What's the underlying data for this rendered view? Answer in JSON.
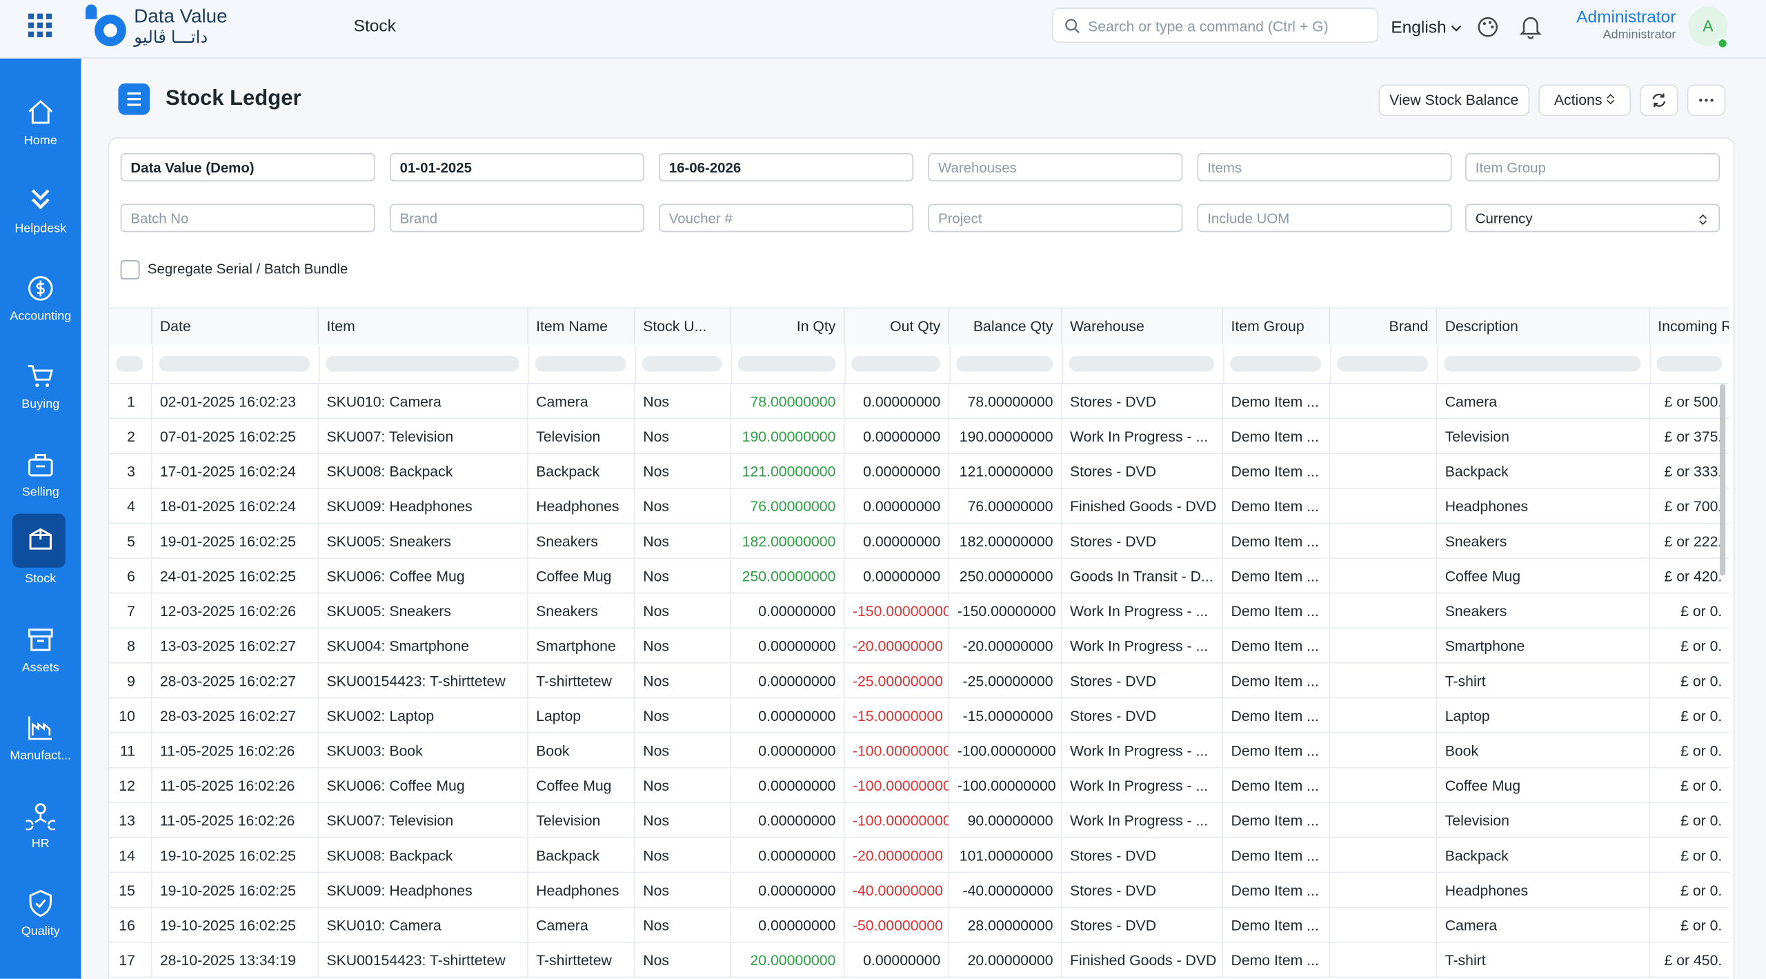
{
  "header": {
    "app_name": "Data Value",
    "app_name_ar": "داتـــا ڤاليو",
    "module": "Stock",
    "search_placeholder": "Search or type a command (Ctrl + G)",
    "language": "English",
    "user_name": "Administrator",
    "user_role": "Administrator",
    "avatar": "A"
  },
  "sidebar": [
    "Home",
    "Helpdesk",
    "Accounting",
    "Buying",
    "Selling",
    "Stock",
    "Assets",
    "Manufact...",
    "HR",
    "Quality"
  ],
  "sidebar_active": 5,
  "page": {
    "title": "Stock Ledger",
    "buttons": [
      "View Stock Balance",
      "Actions"
    ]
  },
  "filters": [
    {
      "value": "Data Value (Demo)"
    },
    {
      "value": "01-01-2025"
    },
    {
      "value": "16-06-2026"
    },
    {
      "placeholder": "Warehouses"
    },
    {
      "placeholder": "Items"
    },
    {
      "placeholder": "Item Group"
    },
    {
      "placeholder": "Batch No"
    },
    {
      "placeholder": "Brand"
    },
    {
      "placeholder": "Voucher #"
    },
    {
      "placeholder": "Project"
    },
    {
      "placeholder": "Include UOM"
    },
    {
      "value": "Currency",
      "select": true
    }
  ],
  "checkbox_label": "Segregate Serial / Batch Bundle",
  "table": {
    "columns": [
      "Date",
      "Item",
      "Item Name",
      "Stock U...",
      "In Qty",
      "Out Qty",
      "Balance Qty",
      "Warehouse",
      "Item Group",
      "Brand",
      "Description",
      "Incoming R"
    ],
    "rows": [
      [
        "1",
        "02-01-2025 16:02:23",
        "SKU010: Camera",
        "Camera",
        "Nos",
        "78.00000000",
        "0.00000000",
        "78.00000000",
        "Stores - DVD",
        "Demo Item ...",
        "Camera",
        "£ or 500."
      ],
      [
        "2",
        "07-01-2025 16:02:25",
        "SKU007: Television",
        "Television",
        "Nos",
        "190.00000000",
        "0.00000000",
        "190.00000000",
        "Work In Progress - ...",
        "Demo Item ...",
        "Television",
        "£ or 375."
      ],
      [
        "3",
        "17-01-2025 16:02:24",
        "SKU008: Backpack",
        "Backpack",
        "Nos",
        "121.00000000",
        "0.00000000",
        "121.00000000",
        "Stores - DVD",
        "Demo Item ...",
        "Backpack",
        "£ or 333."
      ],
      [
        "4",
        "18-01-2025 16:02:24",
        "SKU009: Headphones",
        "Headphones",
        "Nos",
        "76.00000000",
        "0.00000000",
        "76.00000000",
        "Finished Goods - DVD",
        "Demo Item ...",
        "Headphones",
        "£ or 700."
      ],
      [
        "5",
        "19-01-2025 16:02:25",
        "SKU005: Sneakers",
        "Sneakers",
        "Nos",
        "182.00000000",
        "0.00000000",
        "182.00000000",
        "Stores - DVD",
        "Demo Item ...",
        "Sneakers",
        "£ or 222."
      ],
      [
        "6",
        "24-01-2025 16:02:25",
        "SKU006: Coffee Mug",
        "Coffee Mug",
        "Nos",
        "250.00000000",
        "0.00000000",
        "250.00000000",
        "Goods In Transit - D...",
        "Demo Item ...",
        "Coffee Mug",
        "£ or 420."
      ],
      [
        "7",
        "12-03-2025 16:02:26",
        "SKU005: Sneakers",
        "Sneakers",
        "Nos",
        "0.00000000",
        "-150.00000000",
        "-150.00000000",
        "Work In Progress - ...",
        "Demo Item ...",
        "Sneakers",
        "£ or 0."
      ],
      [
        "8",
        "13-03-2025 16:02:27",
        "SKU004: Smartphone",
        "Smartphone",
        "Nos",
        "0.00000000",
        "-20.00000000",
        "-20.00000000",
        "Work In Progress - ...",
        "Demo Item ...",
        "Smartphone",
        "£ or 0."
      ],
      [
        "9",
        "28-03-2025 16:02:27",
        "SKU00154423: T-shirttetew",
        "T-shirttetew",
        "Nos",
        "0.00000000",
        "-25.00000000",
        "-25.00000000",
        "Stores - DVD",
        "Demo Item ...",
        "T-shirt",
        "£ or 0."
      ],
      [
        "10",
        "28-03-2025 16:02:27",
        "SKU002: Laptop",
        "Laptop",
        "Nos",
        "0.00000000",
        "-15.00000000",
        "-15.00000000",
        "Stores - DVD",
        "Demo Item ...",
        "Laptop",
        "£ or 0."
      ],
      [
        "11",
        "11-05-2025 16:02:26",
        "SKU003: Book",
        "Book",
        "Nos",
        "0.00000000",
        "-100.00000000",
        "-100.00000000",
        "Work In Progress - ...",
        "Demo Item ...",
        "Book",
        "£ or 0."
      ],
      [
        "12",
        "11-05-2025 16:02:26",
        "SKU006: Coffee Mug",
        "Coffee Mug",
        "Nos",
        "0.00000000",
        "-100.00000000",
        "-100.00000000",
        "Work In Progress - ...",
        "Demo Item ...",
        "Coffee Mug",
        "£ or 0."
      ],
      [
        "13",
        "11-05-2025 16:02:26",
        "SKU007: Television",
        "Television",
        "Nos",
        "0.00000000",
        "-100.00000000",
        "90.00000000",
        "Work In Progress - ...",
        "Demo Item ...",
        "Television",
        "£ or 0."
      ],
      [
        "14",
        "19-10-2025 16:02:25",
        "SKU008: Backpack",
        "Backpack",
        "Nos",
        "0.00000000",
        "-20.00000000",
        "101.00000000",
        "Stores - DVD",
        "Demo Item ...",
        "Backpack",
        "£ or 0."
      ],
      [
        "15",
        "19-10-2025 16:02:25",
        "SKU009: Headphones",
        "Headphones",
        "Nos",
        "0.00000000",
        "-40.00000000",
        "-40.00000000",
        "Stores - DVD",
        "Demo Item ...",
        "Headphones",
        "£ or 0."
      ],
      [
        "16",
        "19-10-2025 16:02:25",
        "SKU010: Camera",
        "Camera",
        "Nos",
        "0.00000000",
        "-50.00000000",
        "28.00000000",
        "Stores - DVD",
        "Demo Item ...",
        "Camera",
        "£ or 0."
      ],
      [
        "17",
        "28-10-2025 13:34:19",
        "SKU00154423: T-shirttetew",
        "T-shirttetew",
        "Nos",
        "20.00000000",
        "0.00000000",
        "20.00000000",
        "Finished Goods - DVD",
        "Demo Item ...",
        "T-shirt",
        "£ or 450."
      ]
    ]
  }
}
